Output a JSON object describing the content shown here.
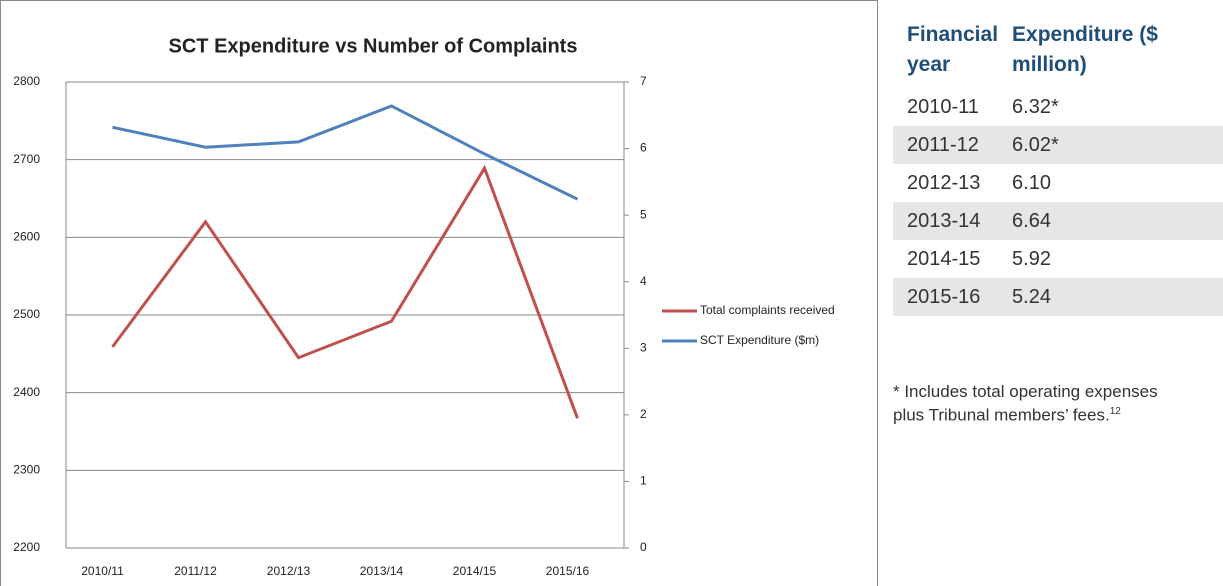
{
  "chart_data": {
    "type": "line",
    "title": "SCT Expenditure vs Number of Complaints",
    "categories": [
      "2010/11",
      "2011/12",
      "2012/13",
      "2013/14",
      "2014/15",
      "2015/16"
    ],
    "series": [
      {
        "name": "Total complaints received",
        "color": "#c0504d",
        "values": [
          2459,
          2620,
          2445,
          2492,
          2689,
          2367
        ]
      },
      {
        "name": "SCT Expenditure ($m)",
        "color": "#4f81bd",
        "axis": "y2",
        "values": [
          6.32,
          6.02,
          6.1,
          6.64,
          5.92,
          5.24
        ]
      }
    ],
    "ylim": [
      2200,
      2800
    ],
    "yticks": [
      2200,
      2300,
      2400,
      2500,
      2600,
      2700,
      2800
    ],
    "y2lim": [
      0,
      7
    ],
    "y2ticks": [
      0,
      1,
      2,
      3,
      4,
      5,
      6,
      7
    ],
    "grid": true,
    "legend": "right"
  },
  "table": {
    "header": [
      "Financial year",
      "Expenditure ($ million)"
    ],
    "rows": [
      [
        "2010-11",
        "6.32*"
      ],
      [
        "2011-12",
        "6.02*"
      ],
      [
        "2012-13",
        "6.10"
      ],
      [
        "2013-14",
        "6.64"
      ],
      [
        "2014-15",
        "5.92"
      ],
      [
        "2015-16",
        "5.24"
      ]
    ]
  },
  "footnote": {
    "text": "* Includes total operating expenses plus Tribunal members’ fees.",
    "ref": "12"
  }
}
